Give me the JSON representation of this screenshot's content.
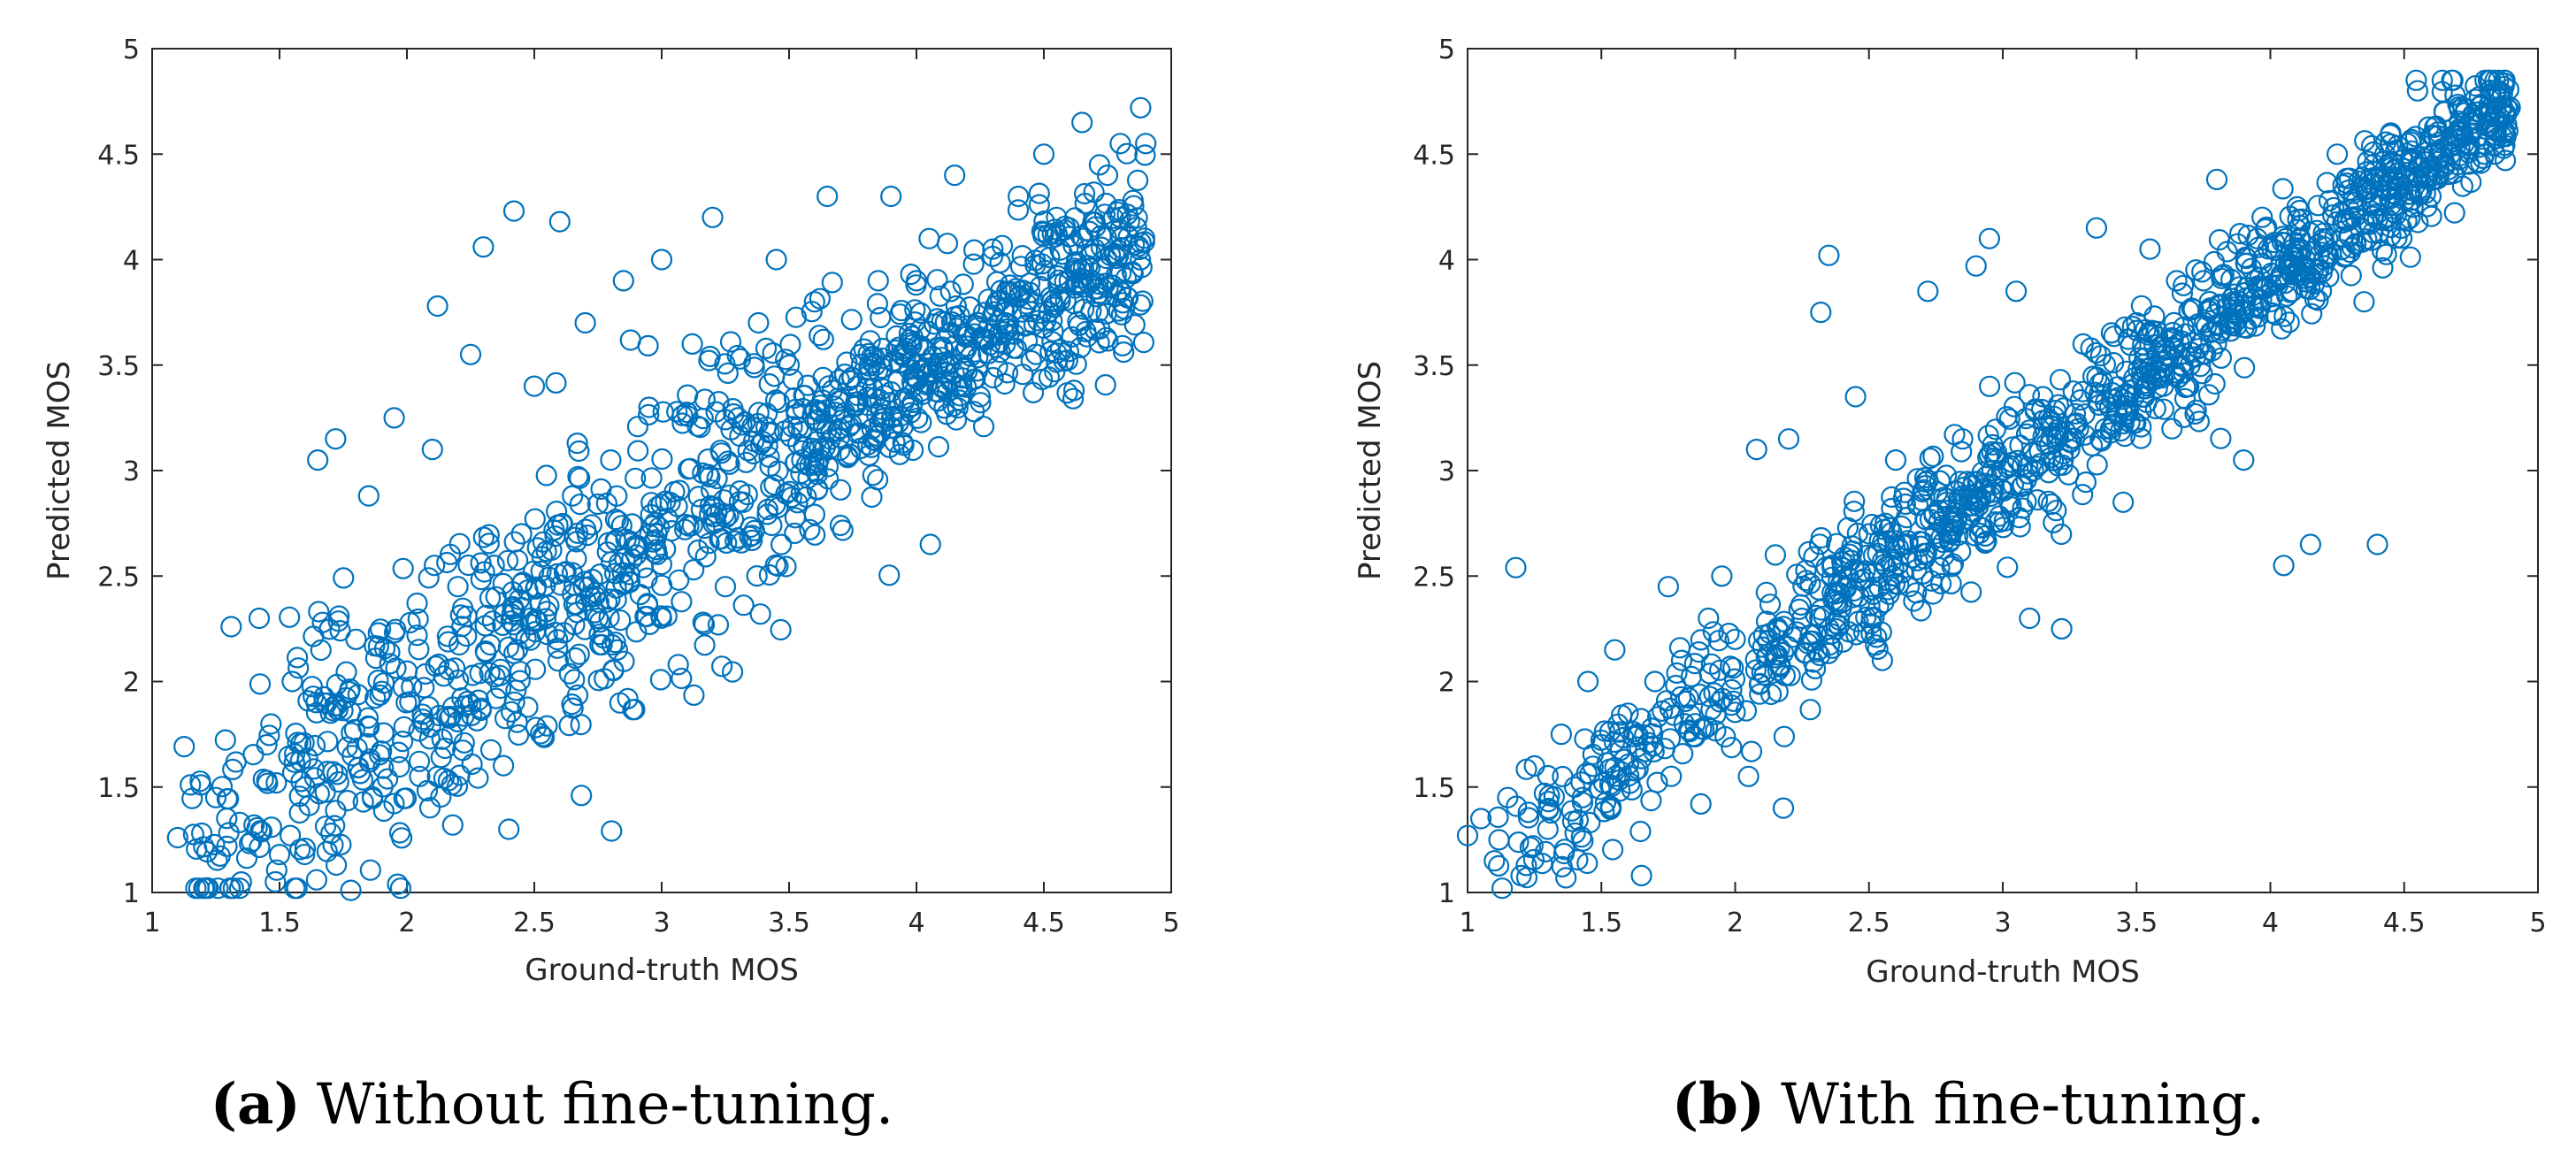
{
  "chart_data": [
    {
      "type": "scatter",
      "id": "a",
      "caption": {
        "label": "(a)",
        "text": "Without fine-tuning."
      },
      "xlabel": "Ground-truth MOS",
      "ylabel": "Predicted MOS",
      "xlim": [
        1,
        5
      ],
      "ylim": [
        1,
        5
      ],
      "xticks": [
        "1",
        "1.5",
        "2",
        "2.5",
        "3",
        "3.5",
        "4",
        "4.5",
        "5"
      ],
      "yticks": [
        "1",
        "1.5",
        "2",
        "2.5",
        "3",
        "3.5",
        "4",
        "4.5",
        "5"
      ],
      "marker": "circle",
      "color": "#0072BD",
      "noise": 0.3,
      "points": [
        [
          1.1,
          1.26
        ],
        [
          1.15,
          1.51
        ],
        [
          1.22,
          1.02
        ],
        [
          1.25,
          1.45
        ],
        [
          1.31,
          2.26
        ],
        [
          1.35,
          1.05
        ],
        [
          1.4,
          1.32
        ],
        [
          1.42,
          2.3
        ],
        [
          1.45,
          1.7
        ],
        [
          1.5,
          1.18
        ],
        [
          1.55,
          2.0
        ],
        [
          1.6,
          1.5
        ],
        [
          1.65,
          3.05
        ],
        [
          1.7,
          1.85
        ],
        [
          1.72,
          3.15
        ],
        [
          1.78,
          1.01
        ],
        [
          1.8,
          2.2
        ],
        [
          1.85,
          2.88
        ],
        [
          1.9,
          1.67
        ],
        [
          1.95,
          3.25
        ],
        [
          2.0,
          2.05
        ],
        [
          2.05,
          1.55
        ],
        [
          2.1,
          3.1
        ],
        [
          2.12,
          3.78
        ],
        [
          2.18,
          1.32
        ],
        [
          2.2,
          2.45
        ],
        [
          2.25,
          3.55
        ],
        [
          2.3,
          4.06
        ],
        [
          2.35,
          1.92
        ],
        [
          2.4,
          1.3
        ],
        [
          2.42,
          4.23
        ],
        [
          2.45,
          2.7
        ],
        [
          2.5,
          3.4
        ],
        [
          2.55,
          1.79
        ],
        [
          2.6,
          4.18
        ],
        [
          2.65,
          2.88
        ],
        [
          2.7,
          3.7
        ],
        [
          2.75,
          2.3
        ],
        [
          2.8,
          3.05
        ],
        [
          2.85,
          3.9
        ],
        [
          2.9,
          2.6
        ],
        [
          2.95,
          3.3
        ],
        [
          3.0,
          4.0
        ],
        [
          3.02,
          2.31
        ],
        [
          3.05,
          2.9
        ],
        [
          3.12,
          3.6
        ],
        [
          3.2,
          4.2
        ],
        [
          3.25,
          2.45
        ],
        [
          3.3,
          3.25
        ],
        [
          3.38,
          3.7
        ],
        [
          3.45,
          4.0
        ],
        [
          3.5,
          3.5
        ],
        [
          3.55,
          3.05
        ],
        [
          3.6,
          3.8
        ],
        [
          3.65,
          4.3
        ],
        [
          3.7,
          3.2
        ],
        [
          3.78,
          3.55
        ],
        [
          3.85,
          3.9
        ],
        [
          3.9,
          4.3
        ],
        [
          3.95,
          3.12
        ],
        [
          4.0,
          3.9
        ],
        [
          4.05,
          4.1
        ],
        [
          4.15,
          4.4
        ],
        [
          4.25,
          3.35
        ],
        [
          4.3,
          4.05
        ],
        [
          4.35,
          3.7
        ],
        [
          4.4,
          4.3
        ],
        [
          4.5,
          4.5
        ],
        [
          4.55,
          4.2
        ],
        [
          4.6,
          3.9
        ],
        [
          4.65,
          4.65
        ],
        [
          4.7,
          4.05
        ],
        [
          4.75,
          4.4
        ],
        [
          4.8,
          4.55
        ],
        [
          4.85,
          4.28
        ],
        [
          4.88,
          4.72
        ],
        [
          4.9,
          4.55
        ]
      ]
    },
    {
      "type": "scatter",
      "id": "b",
      "caption": {
        "label": "(b)",
        "text": "With fine-tuning."
      },
      "xlabel": "Ground-truth MOS",
      "ylabel": "Predicted MOS",
      "xlim": [
        1,
        5
      ],
      "ylim": [
        1,
        5
      ],
      "xticks": [
        "1",
        "1.5",
        "2",
        "2.5",
        "3",
        "3.5",
        "4",
        "4.5",
        "5"
      ],
      "yticks": [
        "1",
        "1.5",
        "2",
        "2.5",
        "3",
        "3.5",
        "4",
        "4.5",
        "5"
      ],
      "marker": "circle",
      "color": "#0072BD",
      "noise": 0.16,
      "points": [
        [
          1.0,
          1.27
        ],
        [
          1.05,
          1.35
        ],
        [
          1.1,
          1.15
        ],
        [
          1.15,
          1.45
        ],
        [
          1.18,
          2.54
        ],
        [
          1.2,
          1.08
        ],
        [
          1.25,
          1.6
        ],
        [
          1.3,
          1.3
        ],
        [
          1.35,
          1.75
        ],
        [
          1.4,
          1.5
        ],
        [
          1.45,
          2.0
        ],
        [
          1.5,
          1.7
        ],
        [
          1.55,
          2.15
        ],
        [
          1.6,
          1.85
        ],
        [
          1.65,
          1.08
        ],
        [
          1.7,
          2.0
        ],
        [
          1.75,
          2.45
        ],
        [
          1.8,
          2.1
        ],
        [
          1.85,
          1.8
        ],
        [
          1.9,
          2.3
        ],
        [
          1.95,
          2.5
        ],
        [
          2.0,
          2.2
        ],
        [
          2.05,
          1.55
        ],
        [
          2.08,
          3.1
        ],
        [
          2.15,
          2.6
        ],
        [
          2.18,
          1.4
        ],
        [
          2.2,
          3.15
        ],
        [
          2.25,
          2.3
        ],
        [
          2.32,
          3.75
        ],
        [
          2.35,
          4.02
        ],
        [
          2.4,
          2.5
        ],
        [
          2.45,
          3.35
        ],
        [
          2.5,
          2.7
        ],
        [
          2.55,
          2.1
        ],
        [
          2.6,
          3.05
        ],
        [
          2.65,
          2.45
        ],
        [
          2.7,
          2.9
        ],
        [
          2.72,
          3.85
        ],
        [
          2.8,
          2.7
        ],
        [
          2.85,
          3.15
        ],
        [
          2.9,
          3.97
        ],
        [
          2.95,
          4.1
        ],
        [
          3.0,
          3.0
        ],
        [
          3.05,
          3.85
        ],
        [
          3.1,
          2.3
        ],
        [
          3.15,
          3.35
        ],
        [
          3.22,
          2.25
        ],
        [
          3.25,
          3.1
        ],
        [
          3.3,
          3.6
        ],
        [
          3.35,
          4.15
        ],
        [
          3.4,
          3.3
        ],
        [
          3.45,
          2.85
        ],
        [
          3.5,
          3.7
        ],
        [
          3.55,
          4.05
        ],
        [
          3.6,
          3.4
        ],
        [
          3.65,
          3.9
        ],
        [
          3.7,
          3.5
        ],
        [
          3.75,
          3.9
        ],
        [
          3.8,
          4.38
        ],
        [
          3.85,
          3.7
        ],
        [
          3.9,
          3.05
        ],
        [
          3.95,
          4.1
        ],
        [
          4.0,
          3.8
        ],
        [
          4.05,
          2.55
        ],
        [
          4.1,
          4.25
        ],
        [
          4.15,
          2.65
        ],
        [
          4.2,
          4.0
        ],
        [
          4.25,
          4.5
        ],
        [
          4.3,
          4.2
        ],
        [
          4.35,
          3.8
        ],
        [
          4.4,
          2.65
        ],
        [
          4.45,
          4.6
        ],
        [
          4.5,
          4.4
        ],
        [
          4.55,
          4.8
        ],
        [
          4.6,
          4.3
        ],
        [
          4.65,
          4.7
        ],
        [
          4.7,
          4.45
        ],
        [
          4.75,
          4.6
        ],
        [
          4.8,
          4.5
        ],
        [
          4.82,
          4.65
        ]
      ]
    }
  ]
}
